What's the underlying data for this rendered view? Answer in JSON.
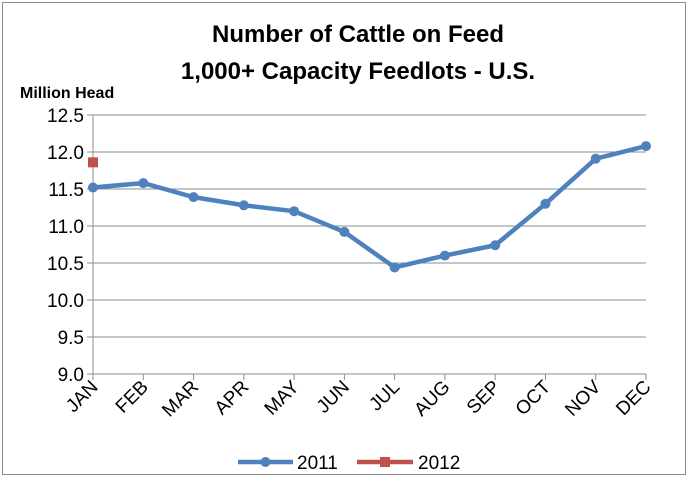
{
  "chart_data": {
    "type": "line",
    "title": [
      "Number of Cattle on Feed",
      "1,000+  Capacity  Feedlots - U.S."
    ],
    "ylabel": "Million Head",
    "ylim": [
      9.0,
      12.5
    ],
    "yticks": [
      "9.0",
      "9.5",
      "10.0",
      "10.5",
      "11.0",
      "11.5",
      "12.0",
      "12.5"
    ],
    "yticks_values": [
      9.0,
      9.5,
      10.0,
      10.5,
      11.0,
      11.5,
      12.0,
      12.5
    ],
    "categories": [
      "JAN",
      "FEB",
      "MAR",
      "APR",
      "MAY",
      "JUN",
      "JUL",
      "AUG",
      "SEP",
      "OCT",
      "NOV",
      "DEC"
    ],
    "grid": true,
    "legend_position": "bottom",
    "series": [
      {
        "name": "2011",
        "color": "#4f81bd",
        "marker": "circle",
        "values": [
          11.52,
          11.58,
          11.39,
          11.28,
          11.2,
          10.92,
          10.44,
          10.6,
          10.74,
          11.3,
          11.91,
          12.08
        ]
      },
      {
        "name": "2012",
        "color": "#c0504d",
        "marker": "square",
        "values": [
          11.86,
          null,
          null,
          null,
          null,
          null,
          null,
          null,
          null,
          null,
          null,
          null
        ]
      }
    ]
  }
}
